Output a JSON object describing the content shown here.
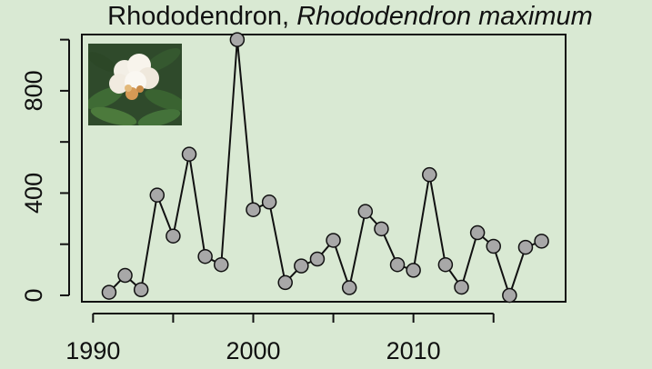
{
  "title": {
    "common_name": "Rhododendron,",
    "scientific_name": "Rhododendron maximum"
  },
  "chart_data": {
    "type": "line",
    "title": "Rhododendron, Rhododendron maximum",
    "xlabel": "",
    "ylabel": "",
    "x": [
      1991,
      1992,
      1993,
      1994,
      1995,
      1996,
      1997,
      1998,
      1999,
      2000,
      2001,
      2002,
      2003,
      2004,
      2005,
      2006,
      2007,
      2008,
      2009,
      2010,
      2011,
      2012,
      2013,
      2014,
      2015,
      2016,
      2017,
      2018
    ],
    "values": [
      12,
      78,
      22,
      392,
      232,
      552,
      152,
      120,
      1000,
      335,
      365,
      50,
      115,
      142,
      215,
      30,
      328,
      260,
      120,
      98,
      472,
      120,
      32,
      245,
      192,
      0,
      188,
      212
    ],
    "xlim": [
      1989.3,
      2019.5
    ],
    "ylim": [
      -25,
      1020
    ],
    "x_ticks": [
      1990,
      1995,
      2000,
      2005,
      2010,
      2015
    ],
    "x_tick_labels": [
      "1990",
      "",
      "2000",
      "",
      "2010",
      ""
    ],
    "y_ticks": [
      0,
      200,
      400,
      600,
      800,
      1000
    ],
    "y_tick_labels": [
      "0",
      "",
      "400",
      "",
      "800",
      ""
    ],
    "grid": false,
    "marker_color": "#a8a8a8",
    "line_color": "#111111"
  },
  "inset_photo": {
    "icon": "rhododendron-flower-photo"
  }
}
